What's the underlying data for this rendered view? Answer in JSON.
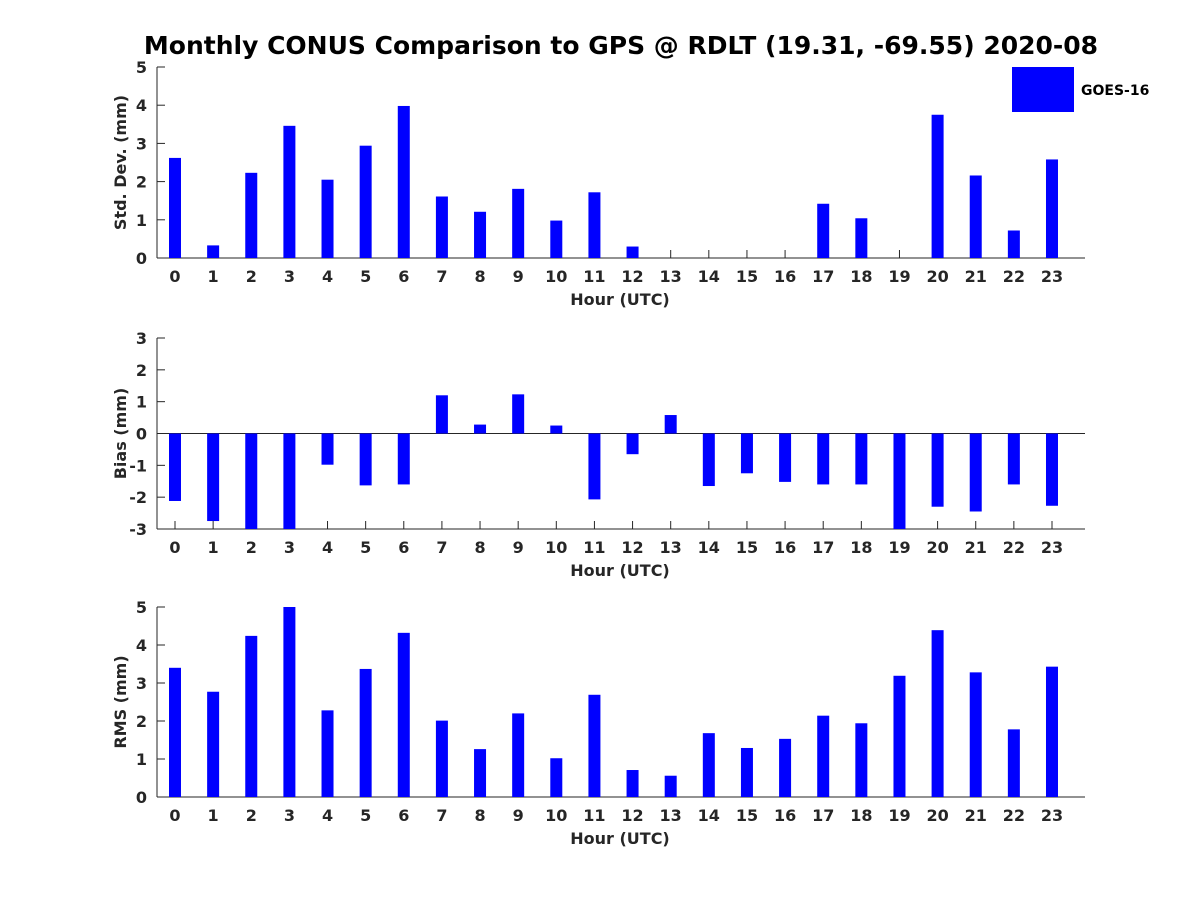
{
  "chart_data": {
    "type": "bar",
    "title": "Monthly CONUS Comparison to GPS @ RDLT (19.31, -69.55) 2020-08",
    "legend": {
      "label": "GOES-16",
      "color": "#0000ff",
      "position": "top-right"
    },
    "categories": [
      "0",
      "1",
      "2",
      "3",
      "4",
      "5",
      "6",
      "7",
      "8",
      "9",
      "10",
      "11",
      "12",
      "13",
      "14",
      "15",
      "16",
      "17",
      "18",
      "19",
      "20",
      "21",
      "22",
      "23"
    ],
    "panels": [
      {
        "name": "std-dev",
        "xlabel": "Hour (UTC)",
        "ylabel": "Std. Dev. (mm)",
        "ylim": [
          0,
          5
        ],
        "yticks": [
          "0",
          "1",
          "2",
          "3",
          "4",
          "5"
        ],
        "values": [
          2.62,
          0.33,
          2.23,
          3.46,
          2.05,
          2.94,
          3.98,
          1.61,
          1.21,
          1.81,
          0.98,
          1.72,
          0.3,
          0,
          0,
          0,
          0,
          1.42,
          1.04,
          0,
          3.75,
          2.16,
          0.72,
          2.58
        ]
      },
      {
        "name": "bias",
        "xlabel": "Hour (UTC)",
        "ylabel": "Bias (mm)",
        "ylim": [
          -3,
          3
        ],
        "yticks": [
          "-3",
          "-2",
          "-1",
          "0",
          "1",
          "2",
          "3"
        ],
        "values": [
          -2.12,
          -2.75,
          -3.0,
          -3.0,
          -0.98,
          -1.63,
          -1.6,
          1.2,
          0.28,
          1.23,
          0.25,
          -2.07,
          -0.65,
          0.58,
          -1.65,
          -1.25,
          -1.52,
          -1.6,
          -1.6,
          -3.0,
          -2.3,
          -2.45,
          -1.6,
          -2.27
        ]
      },
      {
        "name": "rms",
        "xlabel": "Hour (UTC)",
        "ylabel": "RMS (mm)",
        "ylim": [
          0,
          5
        ],
        "yticks": [
          "0",
          "1",
          "2",
          "3",
          "4",
          "5"
        ],
        "values": [
          3.4,
          2.77,
          4.24,
          5.0,
          2.28,
          3.37,
          4.32,
          2.01,
          1.26,
          2.2,
          1.02,
          2.69,
          0.71,
          0.56,
          1.68,
          1.29,
          1.53,
          2.14,
          1.94,
          3.19,
          4.39,
          3.28,
          1.78,
          3.43
        ]
      }
    ]
  }
}
